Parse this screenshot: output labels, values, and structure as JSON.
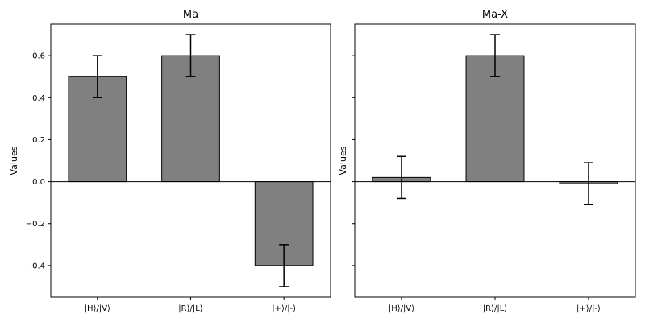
{
  "chart_data": [
    {
      "type": "bar",
      "title": "Ma",
      "ylabel": "Values",
      "xlabel": "",
      "categories": [
        "|H⟩/|V⟩",
        "|R⟩/|L⟩",
        "|+⟩/|-⟩"
      ],
      "values": [
        0.5,
        0.6,
        -0.4
      ],
      "errors": [
        0.1,
        0.1,
        0.1
      ],
      "ylim": [
        -0.55,
        0.75
      ],
      "yticks": [
        -0.4,
        -0.2,
        0.0,
        0.2,
        0.4,
        0.6
      ],
      "ytick_labels": [
        "−0.4",
        "−0.2",
        "0.0",
        "0.2",
        "0.4",
        "0.6"
      ],
      "show_ytick_labels": true,
      "bar_color": "#808080",
      "grid": false
    },
    {
      "type": "bar",
      "title": "Ma-X",
      "ylabel": "Values",
      "xlabel": "",
      "categories": [
        "|H⟩/|V⟩",
        "|R⟩/|L⟩",
        "|+⟩/|-⟩"
      ],
      "values": [
        0.02,
        0.6,
        -0.01
      ],
      "errors": [
        0.1,
        0.1,
        0.1
      ],
      "ylim": [
        -0.55,
        0.75
      ],
      "yticks": [
        -0.4,
        -0.2,
        0.0,
        0.2,
        0.4,
        0.6
      ],
      "ytick_labels": [
        "",
        "",
        "",
        "",
        "",
        ""
      ],
      "show_ytick_labels": false,
      "bar_color": "#808080",
      "grid": false
    }
  ]
}
